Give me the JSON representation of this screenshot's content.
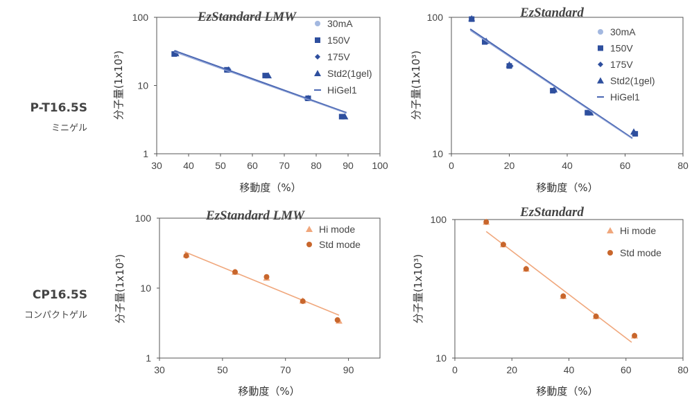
{
  "row_labels": [
    {
      "main": "P-T16.5S",
      "sub": "ミニゲル"
    },
    {
      "main": "CP16.5S",
      "sub": "コンパクトゲル"
    }
  ],
  "chart_data": [
    {
      "type": "scatter",
      "title": "EzStandard LMW",
      "xlabel": "移動度（%）",
      "ylabel": "分子量(1x10³)",
      "xlim": [
        30,
        100
      ],
      "ylim": [
        1,
        100
      ],
      "yscale": "log",
      "x_ticks": [
        30,
        40,
        50,
        60,
        70,
        80,
        90,
        100
      ],
      "y_ticks": [
        1,
        10,
        100
      ],
      "grid": false,
      "legend": "top-right",
      "series": [
        {
          "name": "30mA",
          "marker": "circle",
          "color": "#a3b8e0",
          "points": [
            [
              36,
              30
            ],
            [
              52.5,
              17
            ],
            [
              64.5,
              14
            ],
            [
              77,
              6.5
            ],
            [
              88.5,
              3.5
            ]
          ]
        },
        {
          "name": "150V",
          "marker": "square",
          "color": "#2e4f9e",
          "points": [
            [
              35.5,
              29
            ],
            [
              52,
              17
            ],
            [
              64,
              14
            ],
            [
              77.5,
              6.5
            ],
            [
              88,
              3.5
            ]
          ]
        },
        {
          "name": "175V",
          "marker": "diamond",
          "color": "#2e4f9e",
          "points": [
            [
              36,
              29
            ],
            [
              52.5,
              17
            ],
            [
              64.5,
              14
            ],
            [
              77,
              6.5
            ],
            [
              88.5,
              3.5
            ]
          ]
        },
        {
          "name": "Std2(1gel)",
          "marker": "triangle",
          "color": "#2e4f9e",
          "points": [
            [
              36,
              29.5
            ],
            [
              52.5,
              17
            ],
            [
              65,
              14
            ],
            [
              77.5,
              6.5
            ],
            [
              89,
              3.5
            ]
          ]
        },
        {
          "name": "HiGel1",
          "marker": "line",
          "color": "#4a67b3",
          "points": [
            [
              35.5,
              32.5
            ],
            [
              89.5,
              4
            ]
          ]
        }
      ]
    },
    {
      "type": "scatter",
      "title": "EzStandard",
      "xlabel": "移動度（%）",
      "ylabel": "分子量(1x10³)",
      "xlim": [
        0,
        80
      ],
      "ylim": [
        10,
        100
      ],
      "yscale": "log",
      "x_ticks": [
        0,
        20,
        40,
        60,
        80
      ],
      "y_ticks": [
        10,
        100
      ],
      "grid": false,
      "legend": "top-right",
      "series": [
        {
          "name": "30mA",
          "marker": "circle",
          "color": "#a3b8e0",
          "points": [
            [
              7,
              97
            ],
            [
              12,
              66
            ],
            [
              20,
              44
            ],
            [
              35.5,
              29
            ],
            [
              47.5,
              20
            ],
            [
              63,
              14
            ]
          ]
        },
        {
          "name": "150V",
          "marker": "square",
          "color": "#2e4f9e",
          "points": [
            [
              7,
              97
            ],
            [
              11.5,
              66
            ],
            [
              20,
              44
            ],
            [
              35,
              29
            ],
            [
              47,
              20
            ],
            [
              63.5,
              14
            ]
          ]
        },
        {
          "name": "175V",
          "marker": "diamond",
          "color": "#2e4f9e",
          "points": [
            [
              7,
              97
            ],
            [
              12,
              66
            ],
            [
              20.5,
              44
            ],
            [
              35.5,
              29
            ],
            [
              47.5,
              20
            ],
            [
              63.5,
              14
            ]
          ]
        },
        {
          "name": "Std2(1gel)",
          "marker": "triangle",
          "color": "#2e4f9e",
          "points": [
            [
              7,
              98
            ],
            [
              12,
              67
            ],
            [
              20,
              45
            ],
            [
              35.5,
              29.5
            ],
            [
              48,
              20
            ],
            [
              63,
              14.5
            ]
          ]
        },
        {
          "name": "HiGel1",
          "marker": "line",
          "color": "#4a67b3",
          "points": [
            [
              6.5,
              82
            ],
            [
              62.5,
              13
            ]
          ]
        }
      ]
    },
    {
      "type": "scatter",
      "title": "EzStandard LMW",
      "xlabel": "移動度（%）",
      "ylabel": "分子量(1x10³)",
      "xlim": [
        30,
        100
      ],
      "ylim": [
        1,
        100
      ],
      "yscale": "log",
      "x_ticks": [
        30,
        50,
        70,
        90
      ],
      "y_ticks": [
        1,
        10,
        100
      ],
      "grid": false,
      "legend": "top-right",
      "series": [
        {
          "name": "Hi mode",
          "marker": "triangle",
          "color": "#f0a77c",
          "points": [
            [
              38.5,
              30
            ],
            [
              54,
              17
            ],
            [
              64,
              14
            ],
            [
              75.5,
              6.6
            ],
            [
              87,
              3.4
            ]
          ],
          "fit": [
            [
              38,
              33
            ],
            [
              87,
              4.1
            ]
          ]
        },
        {
          "name": "Std mode",
          "marker": "circle",
          "color": "#c8662c",
          "points": [
            [
              38.5,
              29
            ],
            [
              54,
              17
            ],
            [
              64,
              14.5
            ],
            [
              75.5,
              6.5
            ],
            [
              86.5,
              3.5
            ]
          ]
        }
      ]
    },
    {
      "type": "scatter",
      "title": "EzStandard",
      "xlabel": "移動度（%）",
      "ylabel": "分子量(1x10³)",
      "xlim": [
        0,
        80
      ],
      "ylim": [
        10,
        100
      ],
      "yscale": "log",
      "x_ticks": [
        0,
        20,
        40,
        60,
        80
      ],
      "y_ticks": [
        10,
        100
      ],
      "grid": false,
      "legend": "top-right",
      "series": [
        {
          "name": "Hi mode",
          "marker": "triangle",
          "color": "#f0a77c",
          "points": [
            [
              11,
              96
            ],
            [
              17,
              66
            ],
            [
              25,
              44
            ],
            [
              38,
              28
            ],
            [
              49.5,
              20
            ],
            [
              63,
              14.5
            ]
          ],
          "fit": [
            [
              11,
              82
            ],
            [
              62,
              13
            ]
          ]
        },
        {
          "name": "Std mode",
          "marker": "circle",
          "color": "#c8662c",
          "points": [
            [
              11,
              96
            ],
            [
              17,
              66
            ],
            [
              25,
              44
            ],
            [
              38,
              28
            ],
            [
              49.5,
              20
            ],
            [
              63,
              14.5
            ]
          ]
        }
      ]
    }
  ]
}
